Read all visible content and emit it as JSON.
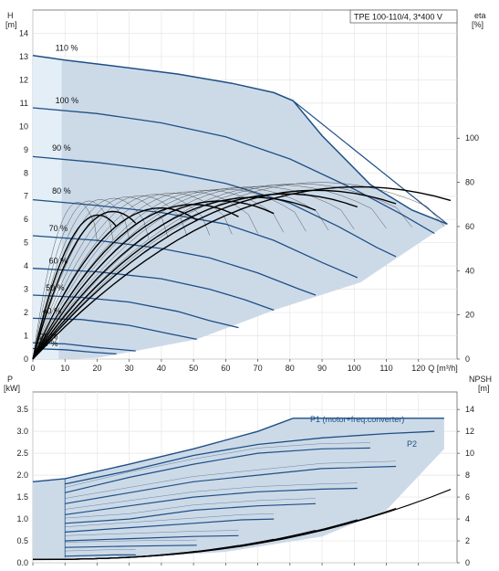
{
  "title": "TPE 100-110/4, 3*400 V",
  "colors": {
    "region": "#ccdae8",
    "region_light": "#e3eef7",
    "curve": "#1f4f86",
    "eta": "#000000",
    "grid": "#e6e6e6"
  },
  "chart_data": [
    {
      "type": "line",
      "name": "head",
      "ylabel": "H\n[m]",
      "xlabel": "Q [m³/h]",
      "xlim": [
        0,
        132
      ],
      "ylim": [
        0,
        15
      ],
      "xticks": [
        0,
        10,
        20,
        30,
        40,
        50,
        60,
        70,
        80,
        90,
        100,
        110,
        120
      ],
      "yticks": [
        0,
        1,
        2,
        3,
        4,
        5,
        6,
        7,
        8,
        9,
        10,
        11,
        12,
        13,
        14
      ],
      "y2label": "eta\n[%]",
      "y2lim": [
        0,
        158
      ],
      "y2ticks": [
        0,
        20,
        40,
        60,
        80,
        100
      ],
      "q_label": "Q [m³/h]",
      "speed_curves": [
        {
          "label": "110 %",
          "points": [
            [
              0,
              13.05
            ],
            [
              10,
              12.85
            ],
            [
              25,
              12.6
            ],
            [
              45,
              12.25
            ],
            [
              62,
              11.85
            ],
            [
              75,
              11.45
            ],
            [
              81,
              11.1
            ],
            [
              90,
              9.6
            ],
            [
              105,
              7.5
            ],
            [
              118,
              6.4
            ],
            [
              129,
              5.8
            ]
          ]
        },
        {
          "label": "100 %",
          "points": [
            [
              0,
              10.8
            ],
            [
              20,
              10.55
            ],
            [
              40,
              10.15
            ],
            [
              60,
              9.55
            ],
            [
              80,
              8.6
            ],
            [
              100,
              7.3
            ],
            [
              115,
              6.2
            ],
            [
              125,
              5.4
            ]
          ]
        },
        {
          "label": "90 %",
          "points": [
            [
              0,
              8.7
            ],
            [
              20,
              8.45
            ],
            [
              40,
              8.1
            ],
            [
              60,
              7.55
            ],
            [
              80,
              6.7
            ],
            [
              95,
              5.7
            ],
            [
              107,
              4.8
            ],
            [
              113,
              4.4
            ]
          ]
        },
        {
          "label": "80 %",
          "points": [
            [
              0,
              6.85
            ],
            [
              20,
              6.6
            ],
            [
              40,
              6.3
            ],
            [
              60,
              5.8
            ],
            [
              75,
              5.1
            ],
            [
              90,
              4.15
            ],
            [
              101,
              3.5
            ]
          ]
        },
        {
          "label": "70 %",
          "points": [
            [
              0,
              5.3
            ],
            [
              20,
              5.1
            ],
            [
              40,
              4.75
            ],
            [
              55,
              4.35
            ],
            [
              70,
              3.7
            ],
            [
              83,
              3.0
            ],
            [
              88,
              2.75
            ]
          ]
        },
        {
          "label": "60 %",
          "points": [
            [
              0,
              3.9
            ],
            [
              20,
              3.75
            ],
            [
              40,
              3.45
            ],
            [
              55,
              3.0
            ],
            [
              66,
              2.55
            ],
            [
              75,
              2.1
            ]
          ]
        },
        {
          "label": "50 %",
          "points": [
            [
              0,
              2.75
            ],
            [
              15,
              2.65
            ],
            [
              30,
              2.45
            ],
            [
              45,
              2.05
            ],
            [
              55,
              1.65
            ],
            [
              64,
              1.35
            ]
          ]
        },
        {
          "label": "40 %",
          "points": [
            [
              0,
              1.75
            ],
            [
              15,
              1.7
            ],
            [
              30,
              1.45
            ],
            [
              42,
              1.1
            ],
            [
              51,
              0.85
            ]
          ]
        },
        {
          "label": "25 %",
          "points": [
            [
              0,
              0.7
            ],
            [
              10,
              0.65
            ],
            [
              20,
              0.5
            ],
            [
              32,
              0.35
            ]
          ]
        },
        {
          "label": "20 %",
          "points": [
            [
              0,
              0.45
            ],
            [
              10,
              0.4
            ],
            [
              18,
              0.3
            ],
            [
              26,
              0.22
            ]
          ]
        }
      ]
    },
    {
      "type": "line",
      "name": "power",
      "ylabel": "P\n[kW]",
      "xlim": [
        0,
        132
      ],
      "ylim": [
        0,
        3.9
      ],
      "yticks": [
        0,
        0.5,
        1.0,
        1.5,
        2.0,
        2.5,
        3.0,
        3.5
      ],
      "ytick_labels": [
        "0.0",
        "0.5",
        "1.0",
        "1.5",
        "2.0",
        "2.5",
        "3.0",
        "3.5"
      ],
      "y2label": "NPSH\n[m]",
      "y2lim": [
        0,
        15.6
      ],
      "y2ticks": [
        0,
        2,
        4,
        6,
        8,
        10,
        12,
        14
      ],
      "series_labels": [
        "P1 (motor+freq.converter)",
        "P2"
      ],
      "p1_envelope": [
        [
          0,
          1.85
        ],
        [
          10,
          1.92
        ],
        [
          30,
          2.25
        ],
        [
          50,
          2.6
        ],
        [
          70,
          3.0
        ],
        [
          81,
          3.3
        ],
        [
          100,
          3.3
        ],
        [
          128,
          3.3
        ]
      ],
      "p2_max": [
        [
          10,
          1.8
        ],
        [
          30,
          2.1
        ],
        [
          50,
          2.45
        ],
        [
          70,
          2.7
        ],
        [
          90,
          2.85
        ],
        [
          110,
          2.95
        ],
        [
          125,
          3.0
        ]
      ],
      "power_curves": [
        [
          [
            10,
            1.6
          ],
          [
            30,
            1.95
          ],
          [
            50,
            2.25
          ],
          [
            70,
            2.5
          ],
          [
            90,
            2.6
          ],
          [
            105,
            2.62
          ]
        ],
        [
          [
            10,
            1.35
          ],
          [
            30,
            1.6
          ],
          [
            50,
            1.85
          ],
          [
            70,
            2.0
          ],
          [
            90,
            2.15
          ],
          [
            113,
            2.2
          ]
        ],
        [
          [
            10,
            1.1
          ],
          [
            30,
            1.3
          ],
          [
            50,
            1.5
          ],
          [
            70,
            1.62
          ],
          [
            90,
            1.68
          ],
          [
            101,
            1.7
          ]
        ],
        [
          [
            10,
            0.9
          ],
          [
            30,
            1.0
          ],
          [
            50,
            1.2
          ],
          [
            70,
            1.3
          ],
          [
            88,
            1.35
          ]
        ],
        [
          [
            10,
            0.7
          ],
          [
            30,
            0.8
          ],
          [
            50,
            0.9
          ],
          [
            65,
            0.98
          ],
          [
            75,
            1.0
          ]
        ],
        [
          [
            10,
            0.5
          ],
          [
            30,
            0.55
          ],
          [
            50,
            0.6
          ],
          [
            64,
            0.62
          ]
        ],
        [
          [
            10,
            0.35
          ],
          [
            30,
            0.38
          ],
          [
            51,
            0.4
          ]
        ],
        [
          [
            10,
            0.15
          ],
          [
            25,
            0.18
          ],
          [
            32,
            0.18
          ]
        ]
      ]
    }
  ]
}
